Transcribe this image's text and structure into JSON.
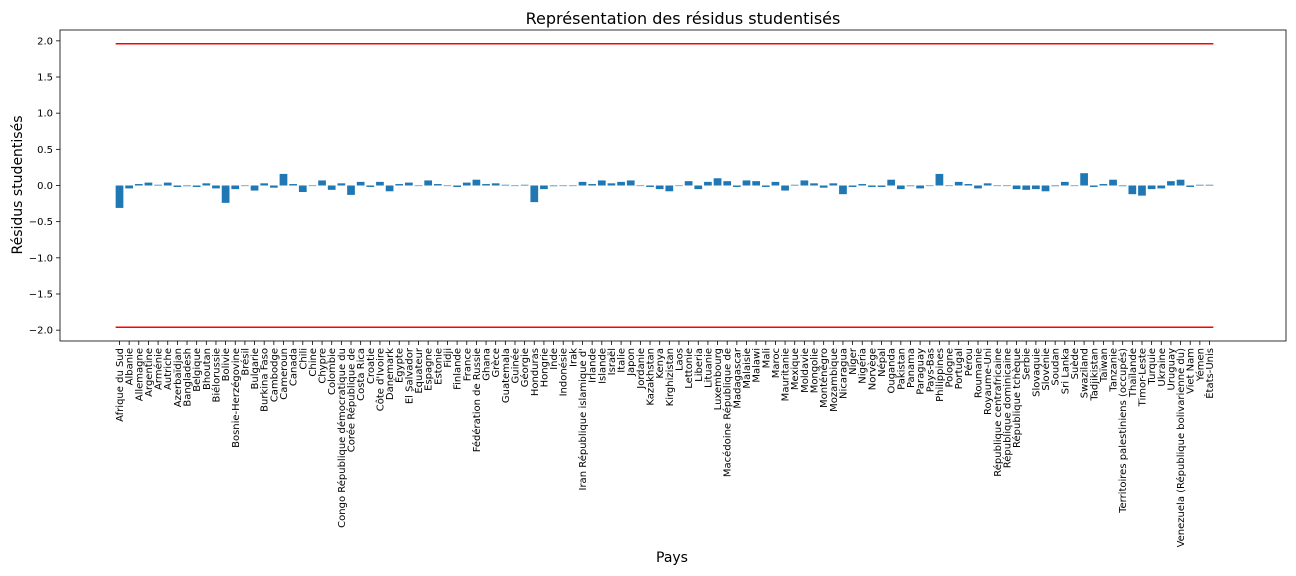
{
  "chart_data": {
    "type": "bar",
    "title": "Représentation des résidus studentisés",
    "xlabel": "Pays",
    "ylabel": "Résidus studentisés",
    "ylim": [
      -2.15,
      2.15
    ],
    "yticks": [
      "−2.0",
      "−1.5",
      "−1.0",
      "−0.5",
      "0.0",
      "0.5",
      "1.0",
      "1.5",
      "2.0"
    ],
    "ytick_values": [
      -2.0,
      -1.5,
      -1.0,
      -0.5,
      0.0,
      0.5,
      1.0,
      1.5,
      2.0
    ],
    "grid": false,
    "bar_color": "#1f77b4",
    "threshold_color": "#ff0000",
    "thresholds": [
      1.96,
      -1.96
    ],
    "categories": [
      "Afrique du Sud",
      "Albanie",
      "Allemagne",
      "Argentine",
      "Arménie",
      "Autriche",
      "Azerbaïdjan",
      "Bangladesh",
      "Belgique",
      "Bhoutan",
      "Biélorussie",
      "Bolivie",
      "Bosnie-Herzégovine",
      "Brésil",
      "Bulgarie",
      "Burkina Faso",
      "Cambodge",
      "Cameroun",
      "Canada",
      "Chili",
      "Chine",
      "Chypre",
      "Colombie",
      "Congo République démocratique du",
      "Corée République de",
      "Costa Rica",
      "Croatie",
      "Côte d'Ivoire",
      "Danemark",
      "Égypte",
      "El Salvador",
      "Équateur",
      "Espagne",
      "Estonie",
      "Fidji",
      "Finlande",
      "France",
      "Fédération de Russie",
      "Ghana",
      "Grèce",
      "Guatemala",
      "Guinée",
      "Géorgie",
      "Honduras",
      "Hongrie",
      "Inde",
      "Indonésie",
      "Irak",
      "Iran République islamique d'",
      "Irlande",
      "Islande",
      "Israël",
      "Italie",
      "Japon",
      "Jordanie",
      "Kazakhstan",
      "Kenya",
      "Kirghizistan",
      "Laos",
      "Lettonie",
      "Liberia",
      "Lituanie",
      "Luxembourg",
      "Macédoine République de",
      "Madagascar",
      "Malaisie",
      "Malawi",
      "Mali",
      "Maroc",
      "Mauritanie",
      "Mexique",
      "Moldavie",
      "Mongolie",
      "Monténégro",
      "Mozambique",
      "Nicaragua",
      "Niger",
      "Nigéria",
      "Norvège",
      "Népal",
      "Ouganda",
      "Pakistan",
      "Panama",
      "Paraguay",
      "Pays-Bas",
      "Philippines",
      "Pologne",
      "Portugal",
      "Pérou",
      "Roumanie",
      "Royaume-Uni",
      "République centrafricaine",
      "République dominicaine",
      "République tchèque",
      "Serbie",
      "Slovaquie",
      "Slovénie",
      "Soudan",
      "Sri Lanka",
      "Suède",
      "Swaziland",
      "Tadjikistan",
      "Taïwan",
      "Tanzanie",
      "Territoires palestiniens (occupés)",
      "Thaïlande",
      "Timor-Leste",
      "Turquie",
      "Ukraine",
      "Uruguay",
      "Venezuela (République bolivarienne du)",
      "Viet Nam",
      "Yémen",
      "États-Unis"
    ],
    "values": [
      -0.31,
      -0.04,
      0.02,
      0.04,
      0.01,
      0.04,
      -0.02,
      -0.01,
      -0.02,
      0.03,
      -0.04,
      -0.24,
      -0.05,
      0.0,
      -0.07,
      0.03,
      -0.03,
      0.16,
      0.02,
      -0.09,
      0.0,
      0.07,
      -0.06,
      0.03,
      -0.13,
      0.05,
      -0.02,
      0.05,
      -0.08,
      0.02,
      0.04,
      0.0,
      0.07,
      0.02,
      0.0,
      -0.02,
      0.04,
      0.08,
      0.02,
      0.03,
      0.01,
      0.0,
      0.01,
      -0.23,
      -0.05,
      -0.01,
      0.0,
      0.0,
      0.05,
      0.02,
      0.07,
      0.03,
      0.05,
      0.07,
      0.0,
      -0.02,
      -0.05,
      -0.08,
      0.0,
      0.06,
      -0.05,
      0.05,
      0.1,
      0.06,
      -0.02,
      0.07,
      0.06,
      -0.02,
      0.05,
      -0.07,
      0.01,
      0.07,
      0.03,
      -0.03,
      0.03,
      -0.12,
      -0.02,
      0.02,
      -0.02,
      -0.02,
      0.08,
      -0.05,
      -0.01,
      -0.04,
      0.0,
      0.16,
      0.0,
      0.05,
      0.02,
      -0.04,
      0.03,
      0.0,
      0.0,
      -0.05,
      -0.06,
      -0.05,
      -0.08,
      -0.01,
      0.05,
      0.0,
      0.17,
      -0.02,
      0.02,
      0.08,
      -0.01,
      -0.12,
      -0.14,
      -0.05,
      -0.04,
      0.06,
      0.08,
      -0.02,
      0.01,
      0.01
    ]
  }
}
